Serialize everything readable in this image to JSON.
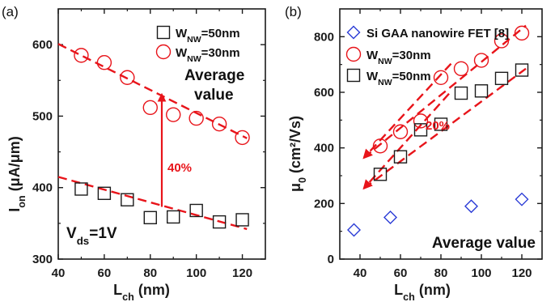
{
  "colors": {
    "red": "#e8141a",
    "black": "#1a1a1a",
    "blue": "#2a3bd6"
  },
  "chart_data": [
    {
      "type": "scatter",
      "panel_label": "(a)",
      "xlabel": {
        "main": "L",
        "sub": "ch",
        "tail": " (nm)"
      },
      "ylabel": {
        "main": "I",
        "sub": "on",
        "tail": " (μA/μm)"
      },
      "xlim": [
        40,
        130
      ],
      "ylim": [
        300,
        650
      ],
      "xticks": [
        "40",
        "60",
        "80",
        "100",
        "120"
      ],
      "yticks": [
        "300",
        "400",
        "500",
        "600"
      ],
      "series": [
        {
          "name": {
            "main": "W",
            "sub": "NW",
            "tail": "=50nm"
          },
          "marker": "square",
          "color": "black",
          "x": [
            50,
            60,
            70,
            80,
            90,
            100,
            110,
            120
          ],
          "y": [
            398,
            392,
            383,
            358,
            359,
            368,
            352,
            355
          ]
        },
        {
          "name": {
            "main": "W",
            "sub": "NW",
            "tail": "=30nm"
          },
          "marker": "circle",
          "color": "red",
          "x": [
            50,
            60,
            70,
            80,
            90,
            100,
            110,
            120
          ],
          "y": [
            585,
            575,
            554,
            512,
            502,
            497,
            489,
            470
          ]
        }
      ],
      "trend_lines": [
        {
          "color": "red",
          "x": [
            40,
            122
          ],
          "y": [
            601,
            469
          ]
        },
        {
          "color": "red",
          "x": [
            40,
            122
          ],
          "y": [
            415,
            342
          ]
        }
      ],
      "arrows": [
        {
          "color": "red",
          "x": [
            85,
            85
          ],
          "y": [
            373,
            530
          ]
        }
      ],
      "annotations": [
        {
          "text": "Average",
          "style": "black"
        },
        {
          "text": "value",
          "style": "black"
        },
        {
          "text": "40%",
          "style": "red"
        },
        {
          "main": "V",
          "sub": "ds",
          "tail": "=1V",
          "style": "black"
        }
      ]
    },
    {
      "type": "scatter",
      "panel_label": "(b)",
      "xlabel": {
        "main": "L",
        "sub": "ch",
        "tail": " (nm)"
      },
      "ylabel": {
        "main": "μ",
        "sub": "0",
        "tail": " (cm²/Vs)"
      },
      "xlim": [
        30,
        130
      ],
      "ylim": [
        0,
        900
      ],
      "xticks": [
        "40",
        "60",
        "80",
        "100",
        "120"
      ],
      "yticks": [
        "0",
        "200",
        "400",
        "600",
        "800"
      ],
      "series": [
        {
          "name": {
            "main": "Si GAA nanowire FET [8]",
            "sub": "",
            "tail": ""
          },
          "marker": "diamond",
          "color": "blue",
          "x": [
            37,
            55,
            95,
            120
          ],
          "y": [
            105,
            150,
            190,
            215
          ]
        },
        {
          "name": {
            "main": "W",
            "sub": "NW",
            "tail": "=30nm"
          },
          "marker": "circle",
          "color": "red",
          "x": [
            50,
            60,
            70,
            80,
            90,
            100,
            110,
            120
          ],
          "y": [
            407,
            458,
            497,
            653,
            685,
            715,
            785,
            813
          ]
        },
        {
          "name": {
            "main": "W",
            "sub": "NW",
            "tail": "=50nm"
          },
          "marker": "square",
          "color": "black",
          "x": [
            50,
            60,
            70,
            80,
            90,
            100,
            110,
            120
          ],
          "y": [
            305,
            368,
            465,
            485,
            597,
            605,
            650,
            680
          ]
        }
      ],
      "trend_lines": [
        {
          "color": "red",
          "x": [
            42,
            122
          ],
          "y": [
            365,
            840
          ]
        },
        {
          "color": "red",
          "x": [
            42,
            122
          ],
          "y": [
            255,
            685
          ]
        }
      ],
      "arrows": [
        {
          "color": "red",
          "x": [
            85,
            42
          ],
          "y": [
            703,
            365
          ]
        },
        {
          "color": "red",
          "x": [
            84,
            42
          ],
          "y": [
            595,
            255
          ]
        }
      ],
      "annotations": [
        {
          "text": "20%",
          "style": "red"
        },
        {
          "text": "Average value",
          "style": "black"
        }
      ]
    }
  ]
}
